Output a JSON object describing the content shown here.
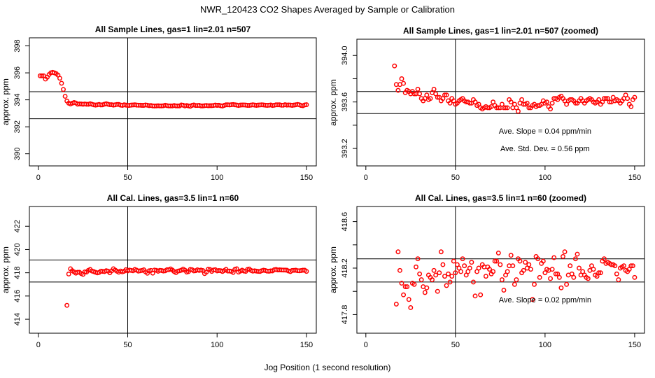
{
  "chart_data": {
    "type": "scatter",
    "title": "NWR_120423  CO2 Shapes Averaged by Sample or Calibration",
    "xlabel": "Jog Position (1 second resolution)",
    "ylabel": "approx. ppm",
    "grid": false,
    "marker_color": "#ff0000",
    "series": [
      {
        "x": [
          1,
          2,
          3,
          4,
          5,
          6,
          7,
          8,
          9,
          10,
          11,
          12,
          13,
          14,
          15,
          16,
          17,
          18,
          19,
          20,
          21,
          22,
          23,
          24,
          25,
          26,
          27,
          28,
          29,
          30,
          31,
          32,
          33,
          34,
          35,
          36,
          37,
          38,
          39,
          40,
          41,
          42,
          43,
          44,
          45,
          46,
          47,
          48,
          49,
          50,
          51,
          52,
          53,
          54,
          55,
          56,
          57,
          58,
          59,
          60,
          61,
          62,
          63,
          64,
          65,
          66,
          67,
          68,
          69,
          70,
          71,
          72,
          73,
          74,
          75,
          76,
          77,
          78,
          79,
          80,
          81,
          82,
          83,
          84,
          85,
          86,
          87,
          88,
          89,
          90,
          91,
          92,
          93,
          94,
          95,
          96,
          97,
          98,
          99,
          100,
          101,
          102,
          103,
          104,
          105,
          106,
          107,
          108,
          109,
          110,
          111,
          112,
          113,
          114,
          115,
          116,
          117,
          118,
          119,
          120,
          121,
          122,
          123,
          124,
          125,
          126,
          127,
          128,
          129,
          130,
          131,
          132,
          133,
          134,
          135,
          136,
          137,
          138,
          139,
          140,
          141,
          142,
          143,
          144,
          145,
          146,
          147,
          148,
          149,
          150
        ],
        "y": [
          395.78,
          395.78,
          395.78,
          395.54,
          395.68,
          395.88,
          396.0,
          396.04,
          396.0,
          395.94,
          395.84,
          395.6,
          395.23,
          394.77,
          394.26,
          393.91,
          393.75,
          393.7,
          393.75,
          393.8,
          393.76,
          393.68,
          393.7,
          393.69,
          393.67,
          393.69,
          393.67,
          393.67,
          393.71,
          393.67,
          393.63,
          393.61,
          393.63,
          393.66,
          393.62,
          393.63,
          393.68,
          393.71,
          393.67,
          393.64,
          393.64,
          393.61,
          393.63,
          393.66,
          393.66,
          393.61,
          393.59,
          393.63,
          393.61,
          393.58,
          393.59,
          393.61,
          393.62,
          393.63,
          393.61,
          393.6,
          393.6,
          393.59,
          393.59,
          393.62,
          393.6,
          393.57,
          393.58,
          393.55,
          393.54,
          393.55,
          393.56,
          393.55,
          393.55,
          393.56,
          393.6,
          393.57,
          393.55,
          393.55,
          393.55,
          393.58,
          393.55,
          393.55,
          393.55,
          393.62,
          393.6,
          393.55,
          393.58,
          393.55,
          393.52,
          393.59,
          393.62,
          393.58,
          393.58,
          393.59,
          393.55,
          393.55,
          393.57,
          393.58,
          393.56,
          393.57,
          393.57,
          393.58,
          393.61,
          393.59,
          393.6,
          393.56,
          393.54,
          393.59,
          393.63,
          393.63,
          393.62,
          393.64,
          393.65,
          393.63,
          393.61,
          393.58,
          393.61,
          393.62,
          393.62,
          393.61,
          393.59,
          393.59,
          393.61,
          393.63,
          393.61,
          393.59,
          393.61,
          393.62,
          393.63,
          393.62,
          393.6,
          393.59,
          393.6,
          393.62,
          393.58,
          393.6,
          393.63,
          393.63,
          393.63,
          393.6,
          393.6,
          393.64,
          393.61,
          393.62,
          393.61,
          393.59,
          393.61,
          393.63,
          393.66,
          393.63,
          393.58,
          393.56,
          393.62,
          393.64
        ]
      },
      {
        "x": [
          16,
          17,
          18,
          19,
          20,
          21,
          22,
          23,
          24,
          25,
          26,
          27,
          28,
          29,
          30,
          31,
          32,
          33,
          34,
          35,
          36,
          37,
          38,
          39,
          40,
          41,
          42,
          43,
          44,
          45,
          46,
          47,
          48,
          49,
          50,
          51,
          52,
          53,
          54,
          55,
          56,
          57,
          58,
          59,
          60,
          61,
          62,
          63,
          64,
          65,
          66,
          67,
          68,
          69,
          70,
          71,
          72,
          73,
          74,
          75,
          76,
          77,
          78,
          79,
          80,
          81,
          82,
          83,
          84,
          85,
          86,
          87,
          88,
          89,
          90,
          91,
          92,
          93,
          94,
          95,
          96,
          97,
          98,
          99,
          100,
          101,
          102,
          103,
          104,
          105,
          106,
          107,
          108,
          109,
          110,
          111,
          112,
          113,
          114,
          115,
          116,
          117,
          118,
          119,
          120,
          121,
          122,
          123,
          124,
          125,
          126,
          127,
          128,
          129,
          130,
          131,
          132,
          133,
          134,
          135,
          136,
          137,
          138,
          139,
          140,
          141,
          142,
          143,
          144,
          145,
          146,
          147,
          148,
          149,
          150
        ],
        "y": [
          415.2,
          417.89,
          418.34,
          418.18,
          418.07,
          417.97,
          418.04,
          418.04,
          417.93,
          417.86,
          418.07,
          418.06,
          418.21,
          418.28,
          418.15,
          418.1,
          418.04,
          417.99,
          418.03,
          418.14,
          418.12,
          418.1,
          418.18,
          418.14,
          418.0,
          418.16,
          418.34,
          418.23,
          418.13,
          418.05,
          418.15,
          418.08,
          418.13,
          418.26,
          418.16,
          418.23,
          418.2,
          418.17,
          418.28,
          418.22,
          418.14,
          418.17,
          418.2,
          418.25,
          418.08,
          417.96,
          418.17,
          418.2,
          417.97,
          418.23,
          418.21,
          418.13,
          418.21,
          418.19,
          418.15,
          418.17,
          418.26,
          418.26,
          418.33,
          418.23,
          418.1,
          418.01,
          418.14,
          418.17,
          418.22,
          418.31,
          418.22,
          418.06,
          418.1,
          418.28,
          418.26,
          418.16,
          418.18,
          418.25,
          418.2,
          418.23,
          418.19,
          417.93,
          418.06,
          418.3,
          418.28,
          418.12,
          418.24,
          418.26,
          418.16,
          418.19,
          418.18,
          418.11,
          418.19,
          418.29,
          418.15,
          418.15,
          418.12,
          418.03,
          418.3,
          418.34,
          418.06,
          418.14,
          418.22,
          418.15,
          418.12,
          418.28,
          418.32,
          418.2,
          418.14,
          418.17,
          418.14,
          418.12,
          418.11,
          418.18,
          418.22,
          418.19,
          418.14,
          418.13,
          418.16,
          418.16,
          418.26,
          418.28,
          418.24,
          418.25,
          418.24,
          418.23,
          418.23,
          418.22,
          418.15,
          418.1,
          418.2,
          418.21,
          418.22,
          418.18,
          418.17,
          418.19,
          418.22,
          418.22,
          418.12
        ]
      }
    ],
    "panels": [
      {
        "title": "All Sample Lines, gas=1 lin=2.01 n=507",
        "series": 0,
        "xlim": [
          -5,
          155.5
        ],
        "ylim": [
          389.1,
          398.6
        ],
        "xticks": [
          0,
          50,
          100,
          150
        ],
        "xtick_labels": [
          "0",
          "50",
          "100",
          "150"
        ],
        "yticks": [
          390,
          392,
          394,
          396,
          398
        ],
        "ytick_labels": [
          "390",
          "392",
          "394",
          "396",
          "398"
        ],
        "hlines": [
          394.6,
          392.6
        ],
        "vline": 50,
        "annotations": []
      },
      {
        "title": "All Sample Lines, gas=1 lin=2.01 n=507 (zoomed)",
        "series": 0,
        "xlim": [
          -5,
          155.5
        ],
        "ylim": [
          393.05,
          394.14
        ],
        "xticks": [
          0,
          50,
          100,
          150
        ],
        "xtick_labels": [
          "0",
          "50",
          "100",
          "150"
        ],
        "yticks": [
          393.2,
          393.4,
          393.6,
          393.8,
          394.0
        ],
        "ytick_labels": [
          "393.2",
          "",
          "393.6",
          "",
          "394.0"
        ],
        "hlines": [
          393.69,
          393.5
        ],
        "vline": 50,
        "annotations": [
          {
            "text": "Ave. Slope =  0.04  ppm/min",
            "x": 100,
            "y": 393.35
          },
          {
            "text": "Ave. Std. Dev. =  0.56  ppm",
            "x": 100,
            "y": 393.2
          }
        ]
      },
      {
        "title": "All Cal. Lines, gas=3.5 lin=1 n=60",
        "series": 1,
        "xlim": [
          -5,
          155.5
        ],
        "ylim": [
          412.8,
          423.7
        ],
        "xticks": [
          0,
          50,
          100,
          150
        ],
        "xtick_labels": [
          "0",
          "50",
          "100",
          "150"
        ],
        "yticks": [
          414,
          416,
          418,
          420,
          422
        ],
        "ytick_labels": [
          "414",
          "416",
          "418",
          "420",
          "422"
        ],
        "hlines": [
          419.1,
          417.2
        ],
        "vline": 50,
        "annotations": []
      },
      {
        "title": "All Cal. Lines, gas=3.5 lin=1 n=60 (zoomed)",
        "series": 1,
        "xlim": [
          -5,
          155.5
        ],
        "ylim": [
          417.64,
          418.73
        ],
        "xticks": [
          0,
          50,
          100,
          150
        ],
        "xtick_labels": [
          "0",
          "50",
          "100",
          "150"
        ],
        "yticks": [
          417.8,
          418.0,
          418.2,
          418.4,
          418.6
        ],
        "ytick_labels": [
          "417.8",
          "",
          "418.2",
          "",
          "418.6"
        ],
        "hlines": [
          418.28,
          418.08
        ],
        "vline": 50,
        "annotations": [
          {
            "text": "Ave. Slope =  0.02  ppm/min",
            "x": 100,
            "y": 417.93
          }
        ]
      }
    ]
  }
}
